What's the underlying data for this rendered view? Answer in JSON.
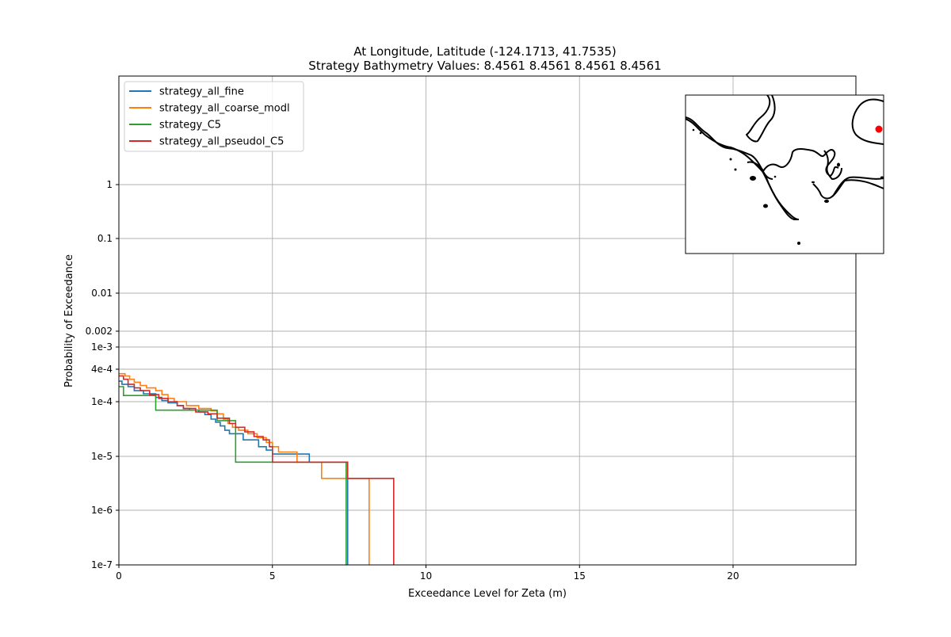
{
  "chart_data": {
    "type": "line",
    "title_line1": "At Longitude, Latitude (-124.1713,  41.7535)",
    "title_line2": "Strategy Bathymetry Values:    8.4561    8.4561    8.4561    8.4561",
    "xlabel": "Exceedance Level for Zeta (m)",
    "ylabel": "Probability of Exceedance",
    "xlim": [
      0,
      24
    ],
    "y_scale": "custom-nonlinear",
    "grid": true,
    "legend_position": "upper-left",
    "x_ticks": [
      {
        "value": 0,
        "label": "0"
      },
      {
        "value": 5,
        "label": "5"
      },
      {
        "value": 10,
        "label": "10"
      },
      {
        "value": 15,
        "label": "15"
      },
      {
        "value": 20,
        "label": "20"
      }
    ],
    "y_ticks": [
      {
        "value": 1e-07,
        "label": "1e-7"
      },
      {
        "value": 1e-06,
        "label": "1e-6"
      },
      {
        "value": 1e-05,
        "label": "1e-5"
      },
      {
        "value": 0.0001,
        "label": "1e-4"
      },
      {
        "value": 0.0004,
        "label": "4e-4"
      },
      {
        "value": 0.001,
        "label": "1e-3"
      },
      {
        "value": 0.002,
        "label": "0.002"
      },
      {
        "value": 0.01,
        "label": "0.01"
      },
      {
        "value": 0.1,
        "label": "0.1"
      },
      {
        "value": 1,
        "label": "1"
      }
    ],
    "series": [
      {
        "name": "strategy_all_fine",
        "color": "#1f77b4",
        "points": [
          [
            0,
            0.00024
          ],
          [
            0.1,
            0.00021
          ],
          [
            0.3,
            0.00019
          ],
          [
            0.5,
            0.00016
          ],
          [
            0.8,
            0.00014
          ],
          [
            1.2,
            0.00012
          ],
          [
            1.4,
            0.000105
          ],
          [
            1.6,
            9.5e-05
          ],
          [
            1.9,
            8.5e-05
          ],
          [
            2.1,
            7.5e-05
          ],
          [
            2.3,
            7e-05
          ],
          [
            2.6,
            6.5e-05
          ],
          [
            2.8,
            5.8e-05
          ],
          [
            3.0,
            4.8e-05
          ],
          [
            3.15,
            4.2e-05
          ],
          [
            3.3,
            3.6e-05
          ],
          [
            3.45,
            3e-05
          ],
          [
            3.6,
            2.6e-05
          ],
          [
            3.9,
            2.6e-05
          ],
          [
            4.05,
            2e-05
          ],
          [
            4.4,
            2e-05
          ],
          [
            4.55,
            1.5e-05
          ],
          [
            4.8,
            1.3e-05
          ],
          [
            5.0,
            1.1e-05
          ],
          [
            6.2,
            1.1e-05
          ],
          [
            6.2,
            7.8e-06
          ],
          [
            7.45,
            7.8e-06
          ],
          [
            7.45,
            1e-07
          ]
        ]
      },
      {
        "name": "strategy_all_coarse_modl",
        "color": "#ff7f0e",
        "points": [
          [
            0,
            0.00033
          ],
          [
            0.2,
            0.0003
          ],
          [
            0.35,
            0.00026
          ],
          [
            0.5,
            0.00023
          ],
          [
            0.7,
            0.0002
          ],
          [
            0.9,
            0.00018
          ],
          [
            1.2,
            0.00016
          ],
          [
            1.4,
            0.000135
          ],
          [
            1.6,
            0.000115
          ],
          [
            1.8,
            0.0001
          ],
          [
            2.2,
            8.5e-05
          ],
          [
            2.6,
            7.5e-05
          ],
          [
            3.0,
            6.8e-05
          ],
          [
            3.2,
            6e-05
          ],
          [
            3.4,
            4.8e-05
          ],
          [
            3.55,
            4e-05
          ],
          [
            3.7,
            3.4e-05
          ],
          [
            3.9,
            3e-05
          ],
          [
            4.2,
            2.6e-05
          ],
          [
            4.5,
            2.2e-05
          ],
          [
            4.8,
            1.8e-05
          ],
          [
            5.0,
            1.5e-05
          ],
          [
            5.2,
            1.2e-05
          ],
          [
            5.8,
            1.2e-05
          ],
          [
            5.8,
            7.8e-06
          ],
          [
            6.6,
            7.8e-06
          ],
          [
            6.6,
            3.9e-06
          ],
          [
            8.15,
            3.9e-06
          ],
          [
            8.15,
            1e-07
          ]
        ]
      },
      {
        "name": "strategy_C5",
        "color": "#2ca02c",
        "points": [
          [
            0,
            0.00019
          ],
          [
            0.15,
            0.00019
          ],
          [
            0.15,
            0.00013
          ],
          [
            1.2,
            0.00013
          ],
          [
            1.2,
            7e-05
          ],
          [
            3.2,
            7e-05
          ],
          [
            3.2,
            4.5e-05
          ],
          [
            3.8,
            4.5e-05
          ],
          [
            3.8,
            7.8e-06
          ],
          [
            7.4,
            7.8e-06
          ],
          [
            7.4,
            1e-07
          ]
        ]
      },
      {
        "name": "strategy_all_pseudol_C5",
        "color": "#d62728",
        "points": [
          [
            0,
            0.0003
          ],
          [
            0.15,
            0.00026
          ],
          [
            0.3,
            0.00021
          ],
          [
            0.5,
            0.00018
          ],
          [
            0.7,
            0.00016
          ],
          [
            1.0,
            0.000135
          ],
          [
            1.3,
            0.000115
          ],
          [
            1.6,
            0.0001
          ],
          [
            1.9,
            8.5e-05
          ],
          [
            2.1,
            7.5e-05
          ],
          [
            2.5,
            6.5e-05
          ],
          [
            2.9,
            6e-05
          ],
          [
            3.2,
            5e-05
          ],
          [
            3.6,
            4e-05
          ],
          [
            3.8,
            3.4e-05
          ],
          [
            4.1,
            2.8e-05
          ],
          [
            4.4,
            2.3e-05
          ],
          [
            4.7,
            2e-05
          ],
          [
            4.9,
            1.5e-05
          ],
          [
            5.0,
            7.8e-06
          ],
          [
            7.45,
            7.8e-06
          ],
          [
            7.45,
            3.9e-06
          ],
          [
            8.95,
            3.9e-06
          ],
          [
            8.95,
            1e-07
          ]
        ]
      }
    ]
  },
  "inset_map": {
    "marker_color": "#ff0000",
    "coast_color": "#000000"
  }
}
